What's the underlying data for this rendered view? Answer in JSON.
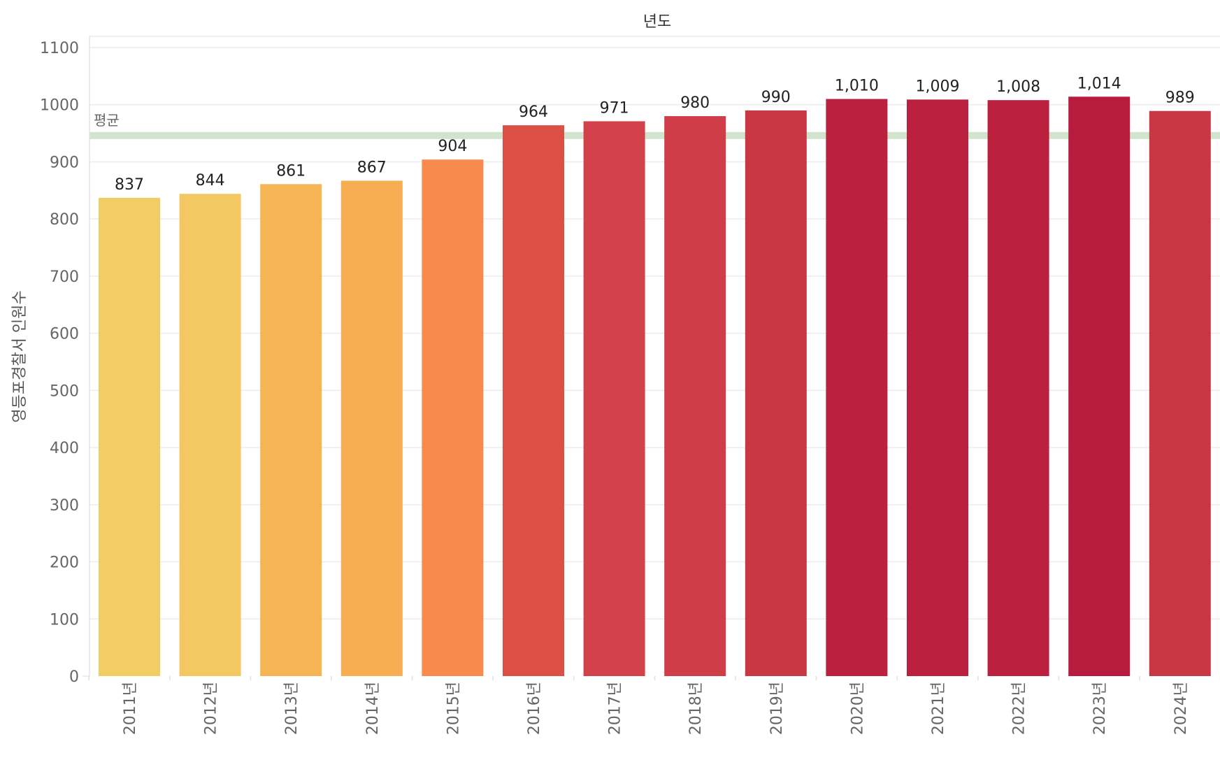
{
  "chart_data": {
    "type": "bar",
    "title": "년도",
    "xlabel": "",
    "ylabel": "영등포경찰서 인원수",
    "ylim": [
      0,
      1100
    ],
    "yticks": [
      0,
      100,
      200,
      300,
      400,
      500,
      600,
      700,
      800,
      900,
      1000,
      1100
    ],
    "categories": [
      "2011년",
      "2012년",
      "2013년",
      "2014년",
      "2015년",
      "2016년",
      "2017년",
      "2018년",
      "2019년",
      "2020년",
      "2021년",
      "2022년",
      "2023년",
      "2024년"
    ],
    "values": [
      837,
      844,
      861,
      867,
      904,
      964,
      971,
      980,
      990,
      1010,
      1009,
      1008,
      1014,
      989
    ],
    "value_labels": [
      "837",
      "844",
      "861",
      "867",
      "904",
      "964",
      "971",
      "980",
      "990",
      "1,010",
      "1,009",
      "1,008",
      "1,014",
      "989"
    ],
    "colors": [
      "#f2cd63",
      "#f3c862",
      "#f6b555",
      "#f7ad52",
      "#f88a4d",
      "#db4f45",
      "#d3414a",
      "#cf3d48",
      "#c93744",
      "#bb213f",
      "#bb213f",
      "#bb213f",
      "#b71c3e",
      "#c93744"
    ],
    "reference_line": {
      "label": "평균",
      "value": 946,
      "color": "#c8e0c3"
    },
    "grid": true
  }
}
